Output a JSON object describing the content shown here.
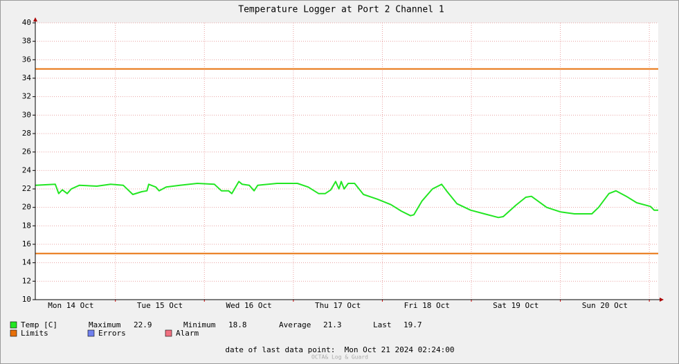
{
  "chart_data": {
    "type": "line",
    "title": "Temperature Logger at Port 2 Channel 1",
    "xlim": [
      2.4,
      170.4
    ],
    "xticks": [
      {
        "value": 12,
        "label": "Mon 14 Oct"
      },
      {
        "value": 36,
        "label": "Tue 15 Oct"
      },
      {
        "value": 60,
        "label": "Wed 16 Oct"
      },
      {
        "value": 84,
        "label": "Thu 17 Oct"
      },
      {
        "value": 108,
        "label": "Fri 18 Oct"
      },
      {
        "value": 132,
        "label": "Sat 19 Oct"
      },
      {
        "value": 156,
        "label": "Sun 20 Oct"
      }
    ],
    "xgrid": [
      24,
      48,
      72,
      96,
      120,
      144,
      168
    ],
    "ylim": [
      10,
      40
    ],
    "yticks": [
      10,
      12,
      14,
      16,
      18,
      20,
      22,
      24,
      26,
      28,
      30,
      32,
      34,
      36,
      38,
      40
    ],
    "grid": true,
    "x": [
      2.4,
      7.8,
      8.7,
      9.7,
      11.0,
      12.1,
      14.3,
      19.0,
      22.7,
      26.1,
      28.7,
      31.1,
      32.5,
      33.0,
      34.9,
      35.8,
      37.7,
      41.4,
      46.1,
      50.7,
      52.6,
      54.5,
      55.4,
      57.3,
      58.2,
      60.1,
      61.4,
      62.4,
      67.6,
      73.1,
      76.0,
      78.8,
      80.6,
      82.1,
      83.4,
      84.3,
      84.9,
      85.7,
      86.8,
      88.5,
      90.9,
      94.6,
      98.3,
      101.1,
      103.6,
      104.5,
      106.7,
      109.5,
      112.0,
      113.3,
      116.1,
      119.8,
      123.5,
      127.3,
      128.6,
      131.9,
      134.7,
      136.2,
      140.3,
      144.1,
      147.8,
      152.5,
      154.3,
      157.1,
      159.0,
      161.8,
      164.6,
      168.3,
      169.3,
      170.4
    ],
    "series": [
      {
        "name": "Temp [C]",
        "color": "#22e622",
        "values": [
          22.4,
          22.5,
          21.5,
          21.9,
          21.5,
          22.0,
          22.4,
          22.3,
          22.5,
          22.4,
          21.4,
          21.7,
          21.8,
          22.5,
          22.2,
          21.8,
          22.2,
          22.4,
          22.6,
          22.5,
          21.8,
          21.8,
          21.5,
          22.8,
          22.5,
          22.4,
          21.8,
          22.4,
          22.6,
          22.6,
          22.2,
          21.5,
          21.5,
          21.9,
          22.8,
          22.0,
          22.8,
          22.0,
          22.6,
          22.6,
          21.4,
          20.9,
          20.3,
          19.6,
          19.1,
          19.2,
          20.7,
          22.0,
          22.5,
          21.8,
          20.4,
          19.7,
          19.3,
          18.9,
          19.0,
          20.2,
          21.1,
          21.2,
          20.0,
          19.5,
          19.3,
          19.3,
          20.0,
          21.5,
          21.8,
          21.2,
          20.5,
          20.1,
          19.7,
          19.7
        ]
      }
    ],
    "limits": {
      "name": "Limits",
      "color": "#e8700a",
      "values": [
        35,
        15
      ]
    },
    "errors": {
      "name": "Errors",
      "color": "#7080ee"
    },
    "alarm": {
      "name": "Alarm",
      "color": "#f07080"
    },
    "stats": [
      {
        "label": "Maximum",
        "value": 22.9
      },
      {
        "label": "Minimum",
        "value": 18.8
      },
      {
        "label": "Average",
        "value": 21.3
      },
      {
        "label": "Last",
        "value": 19.7
      }
    ],
    "footer": "date of last data point:  Mon Oct 21 2024 02:24:00",
    "watermark": "OCTA& Log & Guard"
  }
}
